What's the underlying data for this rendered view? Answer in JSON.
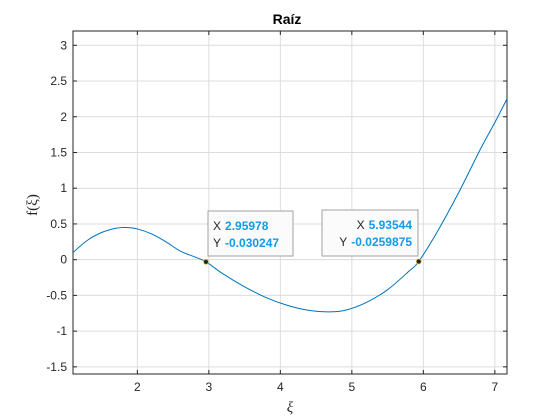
{
  "chart_data": {
    "type": "line",
    "title": "Raíz",
    "xlabel": "ξ",
    "ylabel": "f(ξ)",
    "xlim": [
      1.1,
      7.17
    ],
    "ylim": [
      -1.6,
      3.2
    ],
    "xticks": [
      "2",
      "3",
      "4",
      "5",
      "6",
      "7"
    ],
    "yticks": [
      "-1.5",
      "-1",
      "-0.5",
      "0",
      "0.5",
      "1",
      "1.5",
      "2",
      "2.5",
      "3"
    ],
    "grid": true,
    "series": [
      {
        "color": "#0072bd",
        "x": [
          1.1,
          1.3,
          1.5,
          1.7,
          1.84,
          2.0,
          2.2,
          2.4,
          2.6,
          2.8,
          2.96,
          3.2,
          3.5,
          3.8,
          4.1,
          4.4,
          4.66,
          4.9,
          5.2,
          5.5,
          5.8,
          5.935,
          6.2,
          6.5,
          6.8,
          7.0,
          7.17
        ],
        "y": [
          0.1,
          0.27,
          0.38,
          0.44,
          0.45,
          0.43,
          0.36,
          0.25,
          0.12,
          0.04,
          -0.03,
          -0.2,
          -0.38,
          -0.53,
          -0.64,
          -0.71,
          -0.73,
          -0.71,
          -0.6,
          -0.42,
          -0.16,
          -0.026,
          0.4,
          0.95,
          1.55,
          1.92,
          2.25
        ]
      }
    ],
    "datatips": [
      {
        "x_key": "X",
        "y_key": "Y",
        "x_value": "2.95978",
        "y_value": "-0.030247",
        "x": 2.95978,
        "y": -0.030247
      },
      {
        "x_key": "X",
        "y_key": "Y",
        "x_value": "5.93544",
        "y_value": "-0.0259875",
        "x": 5.93544,
        "y": -0.0259875
      }
    ]
  }
}
